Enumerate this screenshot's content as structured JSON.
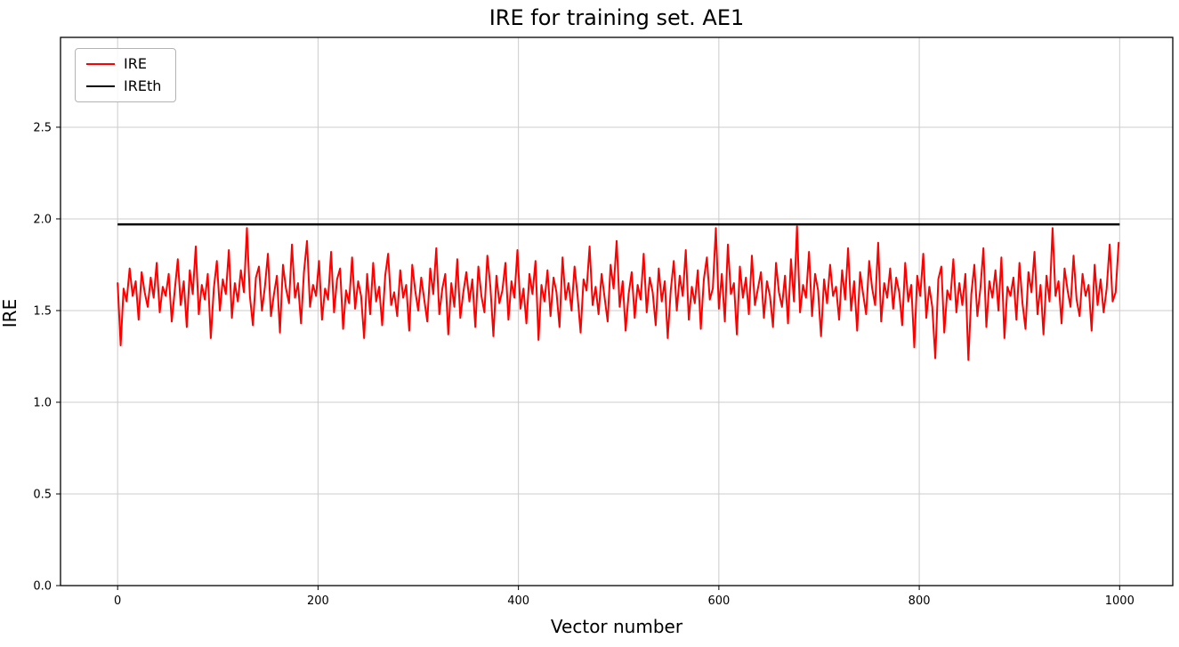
{
  "figure": {
    "background": "#ffffff",
    "grid_color": "#cccccc",
    "axis_color": "#000000"
  },
  "chart_data": {
    "type": "line",
    "title": "IRE for training set. AE1",
    "xlabel": "Vector number",
    "ylabel": "IRE",
    "xlim": [
      -57,
      1053
    ],
    "ylim": [
      0,
      2.99
    ],
    "xticks": [
      0,
      200,
      400,
      600,
      800,
      1000
    ],
    "xtick_labels": [
      "0",
      "200",
      "400",
      "600",
      "800",
      "1000"
    ],
    "yticks": [
      0.0,
      0.5,
      1.0,
      1.5,
      2.0,
      2.5
    ],
    "ytick_labels": [
      "0.0",
      "0.5",
      "1.0",
      "1.5",
      "2.0",
      "2.5"
    ],
    "grid": true,
    "legend": {
      "position": "upper-left",
      "entries": [
        {
          "label": "IRE",
          "color": "#ff0000",
          "linewidth": 2.5
        },
        {
          "label": "IREth",
          "color": "#000000",
          "linewidth": 2.5
        }
      ]
    },
    "series": [
      {
        "name": "IRE",
        "color": "#ff0000",
        "linewidth": 2,
        "x_start": 0,
        "x_step": 3,
        "values": [
          1.65,
          1.31,
          1.62,
          1.55,
          1.73,
          1.58,
          1.66,
          1.45,
          1.71,
          1.6,
          1.52,
          1.68,
          1.57,
          1.76,
          1.49,
          1.63,
          1.58,
          1.7,
          1.44,
          1.61,
          1.78,
          1.53,
          1.66,
          1.41,
          1.72,
          1.59,
          1.85,
          1.48,
          1.64,
          1.56,
          1.7,
          1.35,
          1.62,
          1.77,
          1.5,
          1.67,
          1.59,
          1.83,
          1.46,
          1.65,
          1.55,
          1.72,
          1.6,
          1.95,
          1.58,
          1.42,
          1.68,
          1.74,
          1.5,
          1.63,
          1.81,
          1.47,
          1.59,
          1.69,
          1.38,
          1.75,
          1.62,
          1.54,
          1.86,
          1.57,
          1.65,
          1.43,
          1.71,
          1.88,
          1.52,
          1.64,
          1.58,
          1.77,
          1.45,
          1.62,
          1.56,
          1.82,
          1.49,
          1.67,
          1.73,
          1.4,
          1.61,
          1.54,
          1.79,
          1.51,
          1.66,
          1.58,
          1.35,
          1.7,
          1.48,
          1.76,
          1.55,
          1.63,
          1.42,
          1.69,
          1.81,
          1.53,
          1.6,
          1.47,
          1.72,
          1.57,
          1.64,
          1.39,
          1.75,
          1.61,
          1.5,
          1.68,
          1.56,
          1.44,
          1.73,
          1.59,
          1.84,
          1.48,
          1.62,
          1.7,
          1.37,
          1.65,
          1.52,
          1.78,
          1.46,
          1.6,
          1.71,
          1.55,
          1.67,
          1.41,
          1.74,
          1.58,
          1.49,
          1.8,
          1.63,
          1.36,
          1.69,
          1.54,
          1.61,
          1.76,
          1.45,
          1.66,
          1.57,
          1.83,
          1.51,
          1.62,
          1.43,
          1.7,
          1.59,
          1.77,
          1.34,
          1.64,
          1.55,
          1.72,
          1.47,
          1.68,
          1.6,
          1.41,
          1.79,
          1.56,
          1.65,
          1.5,
          1.74,
          1.58,
          1.38,
          1.67,
          1.61,
          1.85,
          1.53,
          1.63,
          1.48,
          1.7,
          1.57,
          1.44,
          1.75,
          1.62,
          1.88,
          1.52,
          1.66,
          1.39,
          1.59,
          1.71,
          1.46,
          1.64,
          1.56,
          1.81,
          1.49,
          1.68,
          1.6,
          1.42,
          1.73,
          1.55,
          1.66,
          1.35,
          1.61,
          1.77,
          1.5,
          1.69,
          1.58,
          1.83,
          1.45,
          1.63,
          1.54,
          1.72,
          1.4,
          1.67,
          1.79,
          1.56,
          1.62,
          1.95,
          1.51,
          1.7,
          1.44,
          1.86,
          1.59,
          1.65,
          1.37,
          1.74,
          1.57,
          1.68,
          1.48,
          1.8,
          1.53,
          1.62,
          1.71,
          1.46,
          1.66,
          1.58,
          1.41,
          1.76,
          1.6,
          1.52,
          1.69,
          1.43,
          1.78,
          1.55,
          1.96,
          1.49,
          1.64,
          1.57,
          1.82,
          1.47,
          1.7,
          1.61,
          1.36,
          1.67,
          1.54,
          1.75,
          1.58,
          1.63,
          1.45,
          1.72,
          1.56,
          1.84,
          1.5,
          1.66,
          1.39,
          1.71,
          1.59,
          1.48,
          1.77,
          1.62,
          1.53,
          1.87,
          1.44,
          1.65,
          1.57,
          1.73,
          1.51,
          1.68,
          1.6,
          1.42,
          1.76,
          1.55,
          1.64,
          1.3,
          1.69,
          1.58,
          1.81,
          1.46,
          1.63,
          1.52,
          1.24,
          1.67,
          1.74,
          1.38,
          1.61,
          1.56,
          1.78,
          1.49,
          1.65,
          1.53,
          1.7,
          1.23,
          1.59,
          1.75,
          1.47,
          1.62,
          1.84,
          1.41,
          1.66,
          1.57,
          1.72,
          1.5,
          1.79,
          1.35,
          1.63,
          1.58,
          1.68,
          1.45,
          1.76,
          1.54,
          1.4,
          1.71,
          1.6,
          1.82,
          1.48,
          1.64,
          1.37,
          1.69,
          1.55,
          1.95,
          1.58,
          1.66,
          1.43,
          1.73,
          1.61,
          1.52,
          1.8,
          1.56,
          1.47,
          1.7,
          1.58,
          1.64,
          1.39,
          1.75,
          1.53,
          1.67,
          1.49,
          1.62,
          1.86,
          1.55,
          1.6,
          1.87
        ]
      },
      {
        "name": "IREth",
        "color": "#000000",
        "linewidth": 2.5,
        "x": [
          0,
          1000
        ],
        "constant": 1.97
      }
    ]
  }
}
